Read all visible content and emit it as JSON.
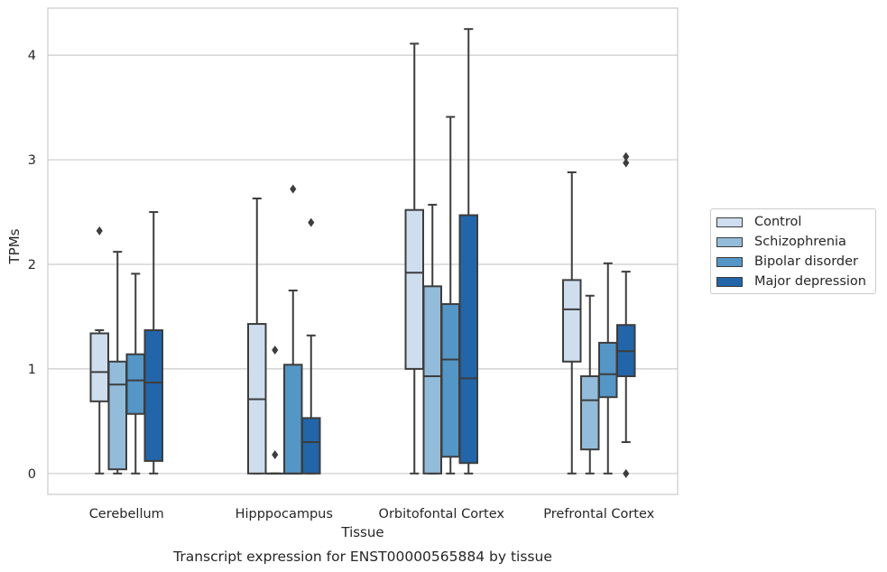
{
  "chart_data": {
    "type": "boxplot",
    "caption": "Transcript expression for ENST00000565884 by tissue",
    "xlabel": "Tissue",
    "ylabel": "TPMs",
    "ylim": [
      -0.2,
      4.45
    ],
    "yticks": [
      0,
      1,
      2,
      3,
      4
    ],
    "grid": true,
    "legend_position": "right",
    "categories": [
      "Cerebellum",
      "Hipppocampus",
      "Orbitofontal Cortex",
      "Prefrontal Cortex"
    ],
    "series": [
      {
        "name": "Control",
        "color": "#cfdeef",
        "boxes": [
          {
            "whislo": 0.0,
            "q1": 0.69,
            "med": 0.97,
            "q3": 1.34,
            "whishi": 1.37,
            "fliers": [
              2.32
            ]
          },
          {
            "whislo": 0.0,
            "q1": 0.0,
            "med": 0.71,
            "q3": 1.43,
            "whishi": 2.63,
            "fliers": []
          },
          {
            "whislo": 0.0,
            "q1": 1.0,
            "med": 1.92,
            "q3": 2.52,
            "whishi": 4.11,
            "fliers": []
          },
          {
            "whislo": 0.0,
            "q1": 1.07,
            "med": 1.57,
            "q3": 1.85,
            "whishi": 2.88,
            "fliers": []
          }
        ]
      },
      {
        "name": "Schizophrenia",
        "color": "#93bcdb",
        "boxes": [
          {
            "whislo": 0.0,
            "q1": 0.04,
            "med": 0.85,
            "q3": 1.07,
            "whishi": 2.12,
            "fliers": []
          },
          {
            "whislo": 0.0,
            "q1": 0.0,
            "med": 0.0,
            "q3": 0.0,
            "whishi": 0.0,
            "fliers": [
              0.18,
              1.18
            ]
          },
          {
            "whislo": 0.0,
            "q1": 0.0,
            "med": 0.93,
            "q3": 1.79,
            "whishi": 2.57,
            "fliers": []
          },
          {
            "whislo": 0.0,
            "q1": 0.23,
            "med": 0.7,
            "q3": 0.93,
            "whishi": 1.7,
            "fliers": []
          }
        ]
      },
      {
        "name": "Bipolar disorder",
        "color": "#5496c5",
        "boxes": [
          {
            "whislo": 0.0,
            "q1": 0.57,
            "med": 0.89,
            "q3": 1.14,
            "whishi": 1.91,
            "fliers": []
          },
          {
            "whislo": 0.0,
            "q1": 0.0,
            "med": 0.0,
            "q3": 1.04,
            "whishi": 1.75,
            "fliers": [
              2.72
            ]
          },
          {
            "whislo": 0.0,
            "q1": 0.16,
            "med": 1.09,
            "q3": 1.62,
            "whishi": 3.41,
            "fliers": []
          },
          {
            "whislo": 0.0,
            "q1": 0.73,
            "med": 0.95,
            "q3": 1.25,
            "whishi": 2.01,
            "fliers": []
          }
        ]
      },
      {
        "name": "Major depression",
        "color": "#2265a9",
        "boxes": [
          {
            "whislo": 0.0,
            "q1": 0.12,
            "med": 0.87,
            "q3": 1.37,
            "whishi": 2.5,
            "fliers": []
          },
          {
            "whislo": 0.0,
            "q1": 0.0,
            "med": 0.3,
            "q3": 0.53,
            "whishi": 1.32,
            "fliers": [
              2.4
            ]
          },
          {
            "whislo": 0.0,
            "q1": 0.1,
            "med": 0.91,
            "q3": 2.47,
            "whishi": 4.25,
            "fliers": []
          },
          {
            "whislo": 0.3,
            "q1": 0.93,
            "med": 1.17,
            "q3": 1.42,
            "whishi": 1.93,
            "fliers": [
              0.0,
              2.97,
              3.03
            ]
          }
        ]
      }
    ]
  }
}
